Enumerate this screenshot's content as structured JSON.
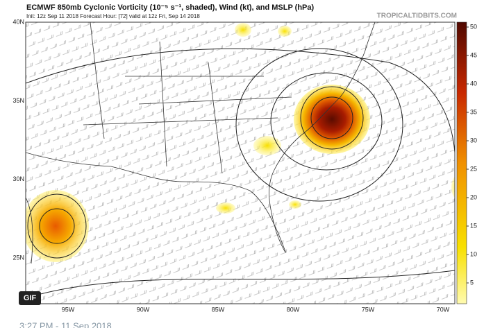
{
  "header": {
    "title": "ECMWF 850mb Cyclonic Vorticity (10⁻⁵ s⁻¹, shaded), Wind (kt), and MSLP (hPa)",
    "subtitle": "Init: 12z Sep 11 2018   Forecast Hour: [72]   valid at 12z Fri, Sep 14 2018",
    "watermark": "TROPICALTIDBITS.COM"
  },
  "map": {
    "lat_labels": [
      "40N",
      "35N",
      "30N",
      "25N"
    ],
    "lon_labels": [
      "95W",
      "90W",
      "85W",
      "80W",
      "75W",
      "70W"
    ]
  },
  "colorbar": {
    "ticks": [
      5,
      10,
      15,
      20,
      25,
      30,
      35,
      40,
      45,
      50
    ]
  },
  "badge": "GIF",
  "footer": "3:27 PM - 11 Sep 2018"
}
